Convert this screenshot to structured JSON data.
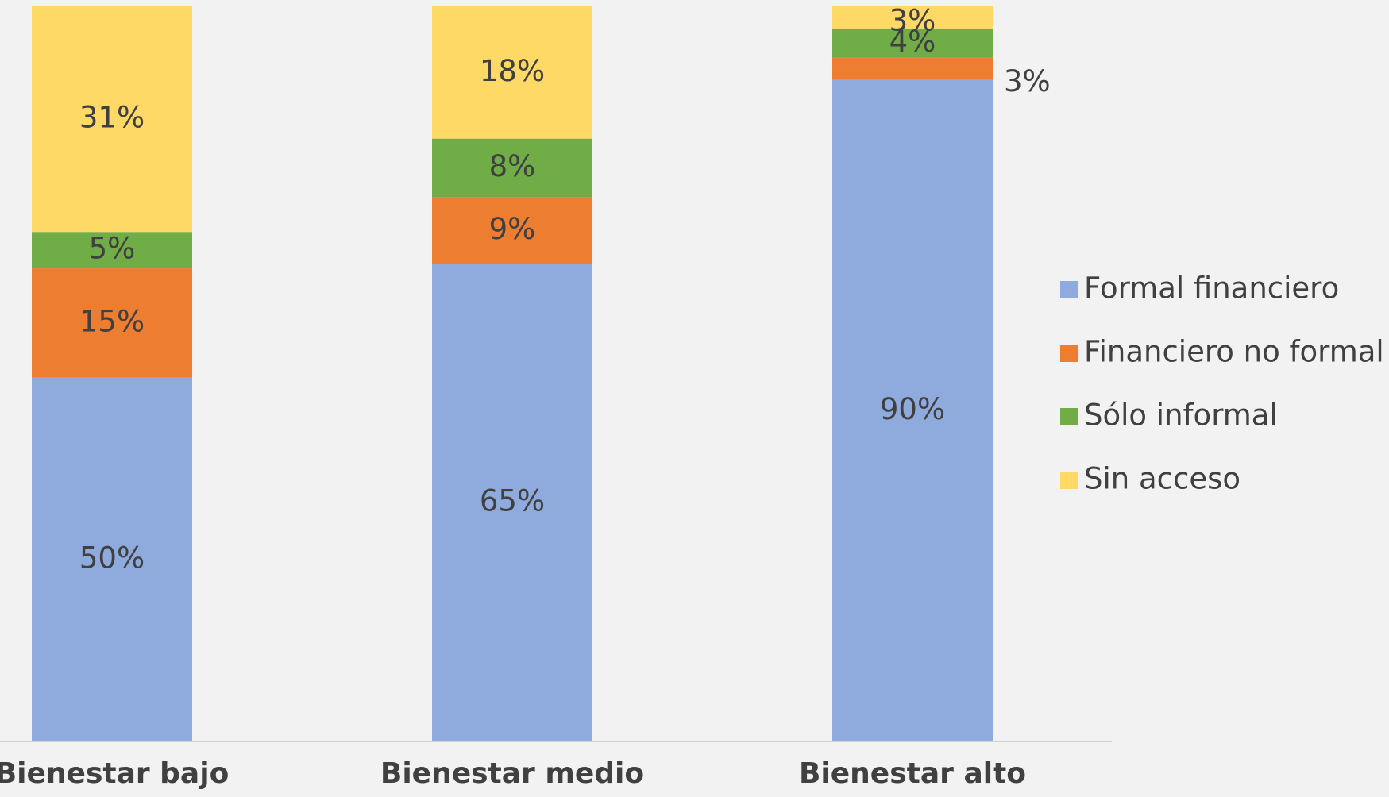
{
  "chart_data": {
    "type": "bar",
    "stacked": true,
    "percent_stacked": true,
    "categories": [
      "Bienestar bajo",
      "Bienestar medio",
      "Bienestar alto"
    ],
    "series": [
      {
        "name": "Formal financiero",
        "color": "#8faadc",
        "values": [
          50,
          65,
          90
        ],
        "labels": [
          "50%",
          "65%",
          "90%"
        ]
      },
      {
        "name": "Financiero no formal",
        "color": "#ed7d31",
        "values": [
          15,
          9,
          3
        ],
        "labels": [
          "15%",
          "9%",
          "3%"
        ]
      },
      {
        "name": "Sólo informal",
        "color": "#70ad47",
        "values": [
          5,
          8,
          4
        ],
        "labels": [
          "5%",
          "8%",
          "4%"
        ]
      },
      {
        "name": "Sin acceso",
        "color": "#ffd966",
        "values": [
          31,
          18,
          3
        ],
        "labels": [
          "31%",
          "18%",
          "3%"
        ]
      }
    ],
    "ylim": [
      0,
      100
    ],
    "title": "",
    "xlabel": "",
    "ylabel": "",
    "grid": false,
    "legend": "right"
  }
}
